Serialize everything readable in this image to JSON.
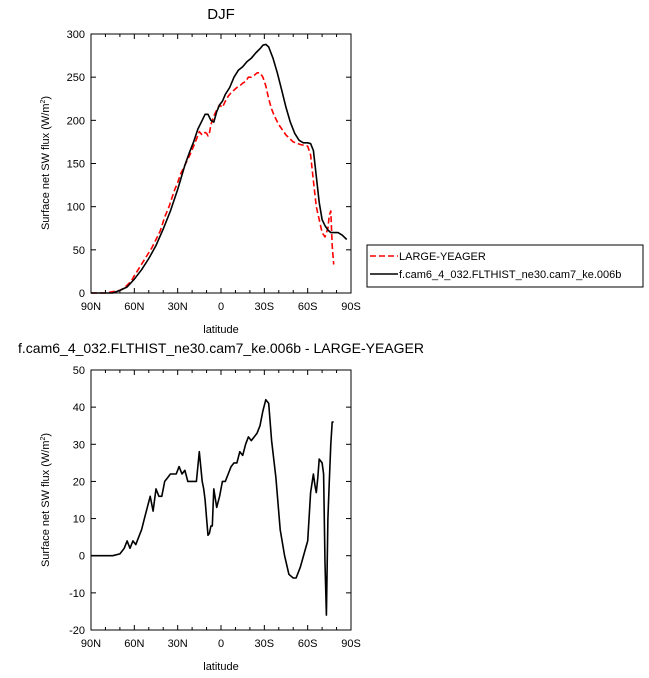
{
  "chart_data": [
    {
      "type": "line",
      "title": "DJF",
      "xlabel": "latitude",
      "ylabel": "Surface net SW flux (W/m",
      "ylabel_sup": "2",
      "ylabel_close": ")",
      "xlim": [
        90,
        -90
      ],
      "ylim": [
        0,
        300
      ],
      "xticks": [
        90,
        60,
        30,
        0,
        -30,
        -60,
        -90
      ],
      "xtick_labels": [
        "90N",
        "60N",
        "30N",
        "0",
        "30S",
        "60S",
        "90S"
      ],
      "yticks": [
        0,
        50,
        100,
        150,
        200,
        250,
        300
      ],
      "ytick_labels": [
        "0",
        "50",
        "100",
        "150",
        "200",
        "250",
        "300"
      ],
      "legend_placement": "right",
      "series": [
        {
          "name": "LARGE-YEAGER",
          "color": "#ff0000",
          "dash": "dashed",
          "x": [
            90,
            80,
            70,
            68,
            65,
            62,
            60,
            57,
            54,
            51,
            48,
            45,
            42,
            39,
            36,
            34,
            32,
            30,
            28,
            25,
            23,
            21,
            19,
            17,
            15,
            13,
            11,
            10,
            9,
            8,
            7,
            6,
            5,
            3,
            1,
            -1,
            -3,
            -5,
            -7,
            -9,
            -11,
            -13,
            -15,
            -17,
            -19,
            -21,
            -23,
            -25,
            -27,
            -29,
            -31,
            -33,
            -35,
            -37,
            -40,
            -45,
            -50,
            -55,
            -60,
            -62,
            -64,
            -66,
            -68,
            -70,
            -72,
            -74,
            -75,
            -76,
            -77,
            -78
          ],
          "y": [
            0,
            0,
            3,
            5,
            9,
            14,
            20,
            28,
            36,
            44,
            52,
            62,
            72,
            88,
            100,
            110,
            120,
            128,
            138,
            148,
            155,
            162,
            170,
            178,
            187,
            183,
            186,
            185,
            182,
            185,
            195,
            200,
            205,
            212,
            218,
            215,
            222,
            228,
            232,
            235,
            238,
            240,
            243,
            245,
            250,
            250,
            252,
            255,
            255,
            250,
            240,
            225,
            213,
            205,
            195,
            183,
            175,
            172,
            170,
            160,
            130,
            100,
            85,
            70,
            65,
            75,
            90,
            95,
            55,
            33
          ]
        },
        {
          "name": "f.cam6_4_032.FLTHIST_ne30.cam7_ke.006b",
          "color": "#000000",
          "dash": "solid",
          "x": [
            90,
            75,
            70,
            65,
            60,
            55,
            50,
            45,
            40,
            35,
            30,
            25,
            22,
            19,
            16,
            13,
            11,
            9,
            7,
            5,
            3,
            1,
            -1,
            -3,
            -6,
            -9,
            -12,
            -15,
            -18,
            -21,
            -24,
            -27,
            -29,
            -31,
            -33,
            -36,
            -39,
            -42,
            -45,
            -48,
            -51,
            -54,
            -57,
            -60,
            -62,
            -64,
            -66,
            -68,
            -70,
            -72,
            -74,
            -76,
            -78,
            -81,
            -84,
            -87
          ],
          "y": [
            0,
            0,
            3,
            7,
            16,
            27,
            40,
            55,
            74,
            95,
            120,
            148,
            162,
            175,
            190,
            200,
            207,
            207,
            200,
            198,
            210,
            218,
            222,
            230,
            238,
            250,
            258,
            262,
            268,
            272,
            278,
            283,
            287,
            288,
            285,
            272,
            255,
            235,
            215,
            198,
            185,
            177,
            174,
            174,
            173,
            165,
            135,
            105,
            85,
            78,
            73,
            70,
            70,
            70,
            67,
            62
          ]
        }
      ]
    },
    {
      "type": "line",
      "title": "f.cam6_4_032.FLTHIST_ne30.cam7_ke.006b - LARGE-YEAGER",
      "xlabel": "latitude",
      "ylabel": "Surface net SW flux (W/m",
      "ylabel_sup": "2",
      "ylabel_close": ")",
      "xlim": [
        90,
        -90
      ],
      "ylim": [
        -20,
        50
      ],
      "xticks": [
        90,
        60,
        30,
        0,
        -30,
        -60,
        -90
      ],
      "xtick_labels": [
        "90N",
        "60N",
        "30N",
        "0",
        "30S",
        "60S",
        "90S"
      ],
      "yticks": [
        -20,
        -10,
        0,
        10,
        20,
        30,
        40,
        50
      ],
      "ytick_labels": [
        "-20",
        "-10",
        "0",
        "10",
        "20",
        "30",
        "40",
        "50"
      ],
      "series": [
        {
          "color": "#000000",
          "dash": "solid",
          "x": [
            90,
            75,
            70,
            67,
            65,
            63,
            61,
            59,
            57,
            55,
            53,
            51,
            49,
            47,
            45,
            43,
            41,
            39,
            37,
            35,
            33,
            31,
            29,
            27,
            25,
            23,
            21,
            19,
            17,
            15,
            13,
            12,
            11,
            10,
            9,
            8,
            7,
            6,
            5,
            3,
            1,
            -1,
            -3,
            -5,
            -7,
            -9,
            -11,
            -13,
            -15,
            -17,
            -19,
            -21,
            -23,
            -25,
            -27,
            -29,
            -31,
            -33,
            -35,
            -38,
            -41,
            -44,
            -47,
            -50,
            -52,
            -55,
            -60,
            -62,
            -64,
            -65,
            -66,
            -67,
            -68,
            -70,
            -71,
            -72,
            -73,
            -74,
            -75,
            -76,
            -77,
            -78
          ],
          "y": [
            0,
            0,
            0.5,
            2,
            4,
            2,
            4,
            3,
            5,
            7,
            10,
            13,
            16,
            12,
            18,
            16,
            16,
            20,
            21,
            22,
            22,
            22,
            24,
            22,
            23,
            20,
            20,
            20,
            20,
            28,
            20,
            18,
            15,
            10,
            5.5,
            6,
            8,
            8,
            18,
            13,
            16,
            20,
            20,
            22,
            24,
            25,
            25,
            28,
            27,
            30,
            32,
            31,
            32,
            33,
            35,
            39,
            42,
            41,
            31,
            21,
            7,
            0,
            -5,
            -6,
            -6,
            -3,
            4,
            17,
            22,
            19,
            17,
            21,
            26,
            25,
            22,
            -2,
            -16,
            10,
            20,
            30,
            36,
            36
          ]
        }
      ]
    }
  ]
}
